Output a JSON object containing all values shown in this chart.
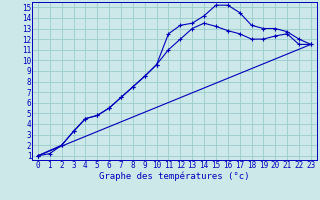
{
  "bg_color": "#cce8e8",
  "grid_color": "#99cccc",
  "line_color": "#0000bb",
  "xlabel": "Graphe des températures (°c)",
  "tick_fontsize": 5.5,
  "xlabel_fontsize": 6.5,
  "xlim_min": -0.5,
  "xlim_max": 23.5,
  "ylim_min": 0.6,
  "ylim_max": 15.5,
  "xticks": [
    0,
    1,
    2,
    3,
    4,
    5,
    6,
    7,
    8,
    9,
    10,
    11,
    12,
    13,
    14,
    15,
    16,
    17,
    18,
    19,
    20,
    21,
    22,
    23
  ],
  "yticks": [
    1,
    2,
    3,
    4,
    5,
    6,
    7,
    8,
    9,
    10,
    11,
    12,
    13,
    14,
    15
  ],
  "line1_x": [
    0,
    1,
    2,
    3,
    4,
    5,
    6,
    7,
    8,
    9,
    10,
    11,
    12,
    13,
    14,
    15,
    16,
    17,
    18,
    19,
    20,
    21,
    22,
    23
  ],
  "line1_y": [
    1.0,
    1.2,
    2.0,
    3.3,
    4.5,
    4.8,
    5.5,
    6.5,
    7.5,
    8.5,
    9.6,
    12.5,
    13.3,
    13.5,
    14.2,
    15.2,
    15.2,
    14.5,
    13.3,
    13.0,
    13.0,
    12.7,
    12.0,
    11.5
  ],
  "line2_x": [
    0,
    2,
    3,
    4,
    5,
    6,
    7,
    8,
    9,
    10,
    11,
    12,
    13,
    14,
    15,
    16,
    17,
    18,
    19,
    20,
    21,
    22,
    23
  ],
  "line2_y": [
    1.0,
    2.0,
    3.3,
    4.5,
    4.8,
    5.5,
    6.5,
    7.5,
    8.5,
    9.6,
    11.0,
    12.0,
    13.0,
    13.5,
    13.2,
    12.8,
    12.5,
    12.0,
    12.0,
    12.3,
    12.5,
    11.5,
    11.5
  ],
  "line3_x": [
    0,
    23
  ],
  "line3_y": [
    1.0,
    11.5
  ]
}
